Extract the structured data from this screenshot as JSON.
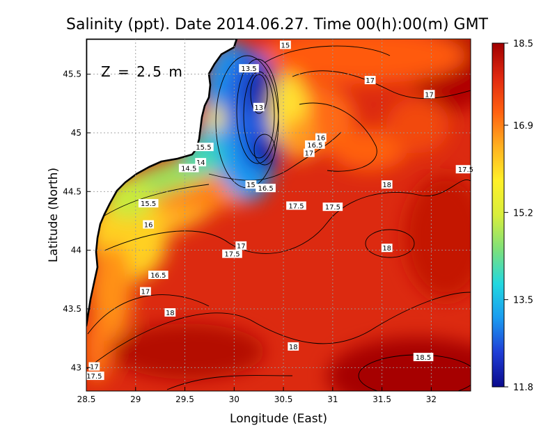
{
  "chart_data": {
    "type": "heatmap",
    "title": "Salinity (ppt). Date 2014.06.27. Time 00(h):00(m) GMT",
    "xlabel": "Longitude (East)",
    "ylabel": "Latitude (North)",
    "xlim": [
      28.5,
      32.4
    ],
    "ylim": [
      42.8,
      45.8
    ],
    "xticks": [
      "28.5",
      "29",
      "29.5",
      "30",
      "30.5",
      "31",
      "31.5",
      "32"
    ],
    "yticks": [
      "43",
      "43.5",
      "44",
      "44.5",
      "45",
      "45.5"
    ],
    "depth_label": "Z = 2.5 m",
    "colorbar": {
      "ticks": [
        "18.5",
        "16.9",
        "15.2",
        "13.5",
        "11.8"
      ],
      "min": 11.8,
      "max": 18.5,
      "colors": [
        "#0a0a8c",
        "#1f3dd6",
        "#1a9bf0",
        "#22d8e0",
        "#7ee07a",
        "#d8ee3c",
        "#fff028",
        "#ffb020",
        "#ff6010",
        "#e02810",
        "#a00000"
      ]
    },
    "grid": true,
    "contour_labels": [
      {
        "text": "15",
        "lon": 30.52,
        "lat": 45.75
      },
      {
        "text": "13.5",
        "lon": 30.15,
        "lat": 45.55
      },
      {
        "text": "13",
        "lon": 30.25,
        "lat": 45.22
      },
      {
        "text": "17",
        "lon": 31.38,
        "lat": 45.45
      },
      {
        "text": "17",
        "lon": 31.98,
        "lat": 45.33
      },
      {
        "text": "16",
        "lon": 30.88,
        "lat": 44.96
      },
      {
        "text": "16.5",
        "lon": 30.82,
        "lat": 44.9
      },
      {
        "text": "17",
        "lon": 30.76,
        "lat": 44.83
      },
      {
        "text": "15.5",
        "lon": 29.69,
        "lat": 44.88
      },
      {
        "text": "14",
        "lon": 29.66,
        "lat": 44.75
      },
      {
        "text": "14.5",
        "lon": 29.54,
        "lat": 44.7
      },
      {
        "text": "15",
        "lon": 30.17,
        "lat": 44.56
      },
      {
        "text": "16.5",
        "lon": 30.32,
        "lat": 44.53
      },
      {
        "text": "17.5",
        "lon": 30.63,
        "lat": 44.38
      },
      {
        "text": "17.5",
        "lon": 31.0,
        "lat": 44.37
      },
      {
        "text": "18",
        "lon": 31.55,
        "lat": 44.56
      },
      {
        "text": "17.5",
        "lon": 32.35,
        "lat": 44.69
      },
      {
        "text": "15.5",
        "lon": 29.13,
        "lat": 44.4
      },
      {
        "text": "16",
        "lon": 29.13,
        "lat": 44.22
      },
      {
        "text": "17",
        "lon": 30.07,
        "lat": 44.04
      },
      {
        "text": "17.5",
        "lon": 29.98,
        "lat": 43.97
      },
      {
        "text": "18",
        "lon": 31.55,
        "lat": 44.02
      },
      {
        "text": "16.5",
        "lon": 29.23,
        "lat": 43.79
      },
      {
        "text": "17",
        "lon": 29.1,
        "lat": 43.65
      },
      {
        "text": "18",
        "lon": 29.35,
        "lat": 43.47
      },
      {
        "text": "18",
        "lon": 30.6,
        "lat": 43.18
      },
      {
        "text": "18.5",
        "lon": 31.92,
        "lat": 43.09
      },
      {
        "text": "17",
        "lon": 28.58,
        "lat": 43.01
      },
      {
        "text": "17.5",
        "lon": 28.58,
        "lat": 42.93
      }
    ]
  }
}
